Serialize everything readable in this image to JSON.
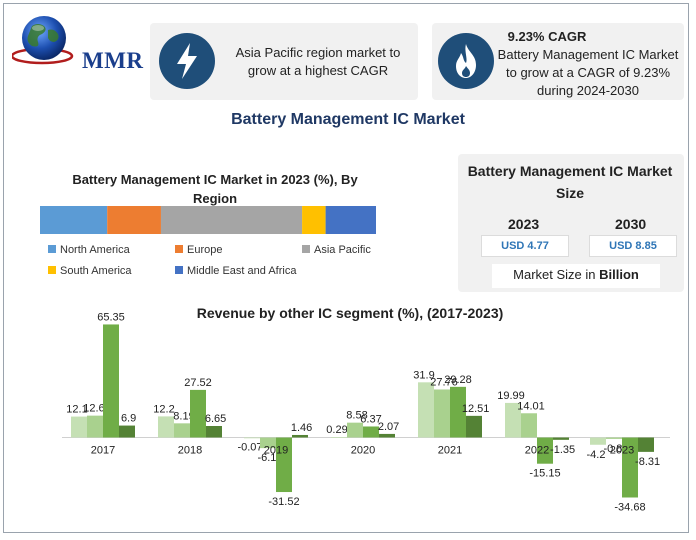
{
  "brand": {
    "name": "MMR"
  },
  "cards": [
    {
      "icon": "lightning-icon",
      "text": "Asia Pacific region market to grow at a highest CAGR"
    },
    {
      "icon": "flame-icon",
      "title": "9.23% CAGR",
      "text": "Battery Management IC Market to grow at a CAGR of 9.23% during 2024-2030"
    }
  ],
  "main_title": "Battery Management IC Market",
  "market_size": {
    "title": "Battery Management IC Market Size",
    "years": [
      {
        "year": "2023",
        "value": "USD 4.77"
      },
      {
        "year": "2030",
        "value": "USD 8.85"
      }
    ],
    "note_prefix": "Market Size in ",
    "note_unit": "Billion"
  },
  "colors": {
    "north_america": "#5b9bd5",
    "europe": "#ed7d31",
    "asia_pacific": "#a5a5a5",
    "south_america": "#ffc000",
    "middle_east_africa": "#4472c4",
    "bar_series": [
      "#c5e0b4",
      "#a9d18e",
      "#70ad47",
      "#548235"
    ],
    "title_blue": "#1f3864",
    "icon_circle": "#1f4e79"
  },
  "chart_data": [
    {
      "type": "bar",
      "orientation": "horizontal-stacked",
      "title": "Battery Management IC Market in 2023 (%), By Region",
      "categories": [
        "North America",
        "Europe",
        "Asia Pacific",
        "South America",
        "Middle East and Africa"
      ],
      "values": [
        20,
        16,
        42,
        7,
        15
      ],
      "legend": "bottom"
    },
    {
      "type": "bar",
      "title": "Revenue by other IC segment (%), (2017-2023)",
      "categories": [
        "2017",
        "2018",
        "2019",
        "2020",
        "2021",
        "2022",
        "2023"
      ],
      "series": [
        {
          "values": [
            12.1,
            12.2,
            -0.07,
            0.29,
            31.9,
            19.99,
            -4.2
          ]
        },
        {
          "values": [
            12.63,
            8.19,
            -6.15,
            8.58,
            27.76,
            14.01,
            -0.81
          ]
        },
        {
          "values": [
            65.35,
            27.52,
            -31.52,
            6.37,
            29.28,
            -15.15,
            -34.68
          ]
        },
        {
          "values": [
            6.9,
            6.65,
            1.46,
            2.07,
            12.51,
            -1.35,
            -8.31
          ]
        }
      ],
      "ylim": [
        -40,
        70
      ],
      "grid": false,
      "legend": "none"
    }
  ]
}
